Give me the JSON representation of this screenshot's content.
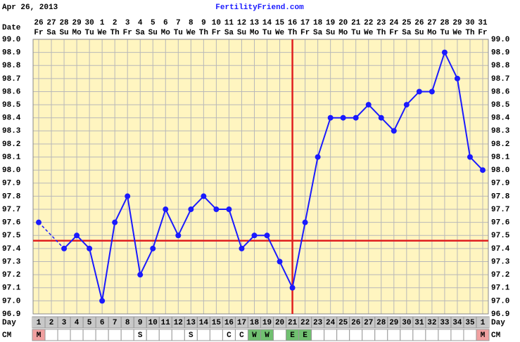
{
  "chart_data": {
    "type": "line",
    "date": "Apr 26, 2013",
    "title": "FertilityFriend.com",
    "date_label": "Date",
    "day_label": "Day",
    "cm_label": "CM",
    "categories": [
      "26",
      "27",
      "28",
      "29",
      "30",
      "1",
      "2",
      "3",
      "4",
      "5",
      "6",
      "7",
      "8",
      "9",
      "10",
      "11",
      "12",
      "13",
      "14",
      "15",
      "16",
      "17",
      "18",
      "19",
      "20",
      "21",
      "22",
      "23",
      "24",
      "25",
      "26",
      "27",
      "28",
      "29",
      "30",
      "31"
    ],
    "weekdays": [
      "Fr",
      "Sa",
      "Su",
      "Mo",
      "Tu",
      "We",
      "Th",
      "Fr",
      "Sa",
      "Su",
      "Mo",
      "Tu",
      "We",
      "Th",
      "Fr",
      "Sa",
      "Su",
      "Mo",
      "Tu",
      "We",
      "Th",
      "Fr",
      "Sa",
      "Su",
      "Mo",
      "Tu",
      "We",
      "Th",
      "Fr",
      "Sa",
      "Su",
      "Mo",
      "Tu",
      "We",
      "Th",
      "Fr"
    ],
    "cycle_days": [
      1,
      2,
      3,
      4,
      5,
      6,
      7,
      8,
      9,
      10,
      11,
      12,
      13,
      14,
      15,
      16,
      17,
      18,
      19,
      20,
      21,
      22,
      23,
      24,
      25,
      26,
      27,
      28,
      29,
      30,
      31,
      32,
      33,
      34,
      35,
      1
    ],
    "cm": [
      "M",
      null,
      null,
      null,
      null,
      null,
      null,
      null,
      "S",
      null,
      null,
      null,
      "S",
      null,
      null,
      "C",
      "C",
      "W",
      "W",
      null,
      "E",
      "E",
      null,
      null,
      null,
      null,
      null,
      null,
      null,
      null,
      null,
      null,
      null,
      null,
      null,
      "M"
    ],
    "cm_colors": [
      "#f0a0a0",
      null,
      null,
      null,
      null,
      null,
      null,
      null,
      null,
      null,
      null,
      null,
      null,
      null,
      null,
      null,
      null,
      "#70c070",
      "#70c070",
      null,
      "#70c070",
      "#70c070",
      null,
      null,
      null,
      null,
      null,
      null,
      null,
      null,
      null,
      null,
      null,
      null,
      null,
      "#f0a0a0"
    ],
    "values": [
      97.6,
      null,
      97.4,
      97.5,
      97.4,
      97.0,
      97.6,
      97.8,
      97.2,
      97.4,
      97.7,
      97.5,
      97.7,
      97.8,
      97.7,
      97.7,
      97.4,
      97.5,
      97.5,
      97.3,
      97.1,
      97.6,
      98.1,
      98.4,
      98.4,
      98.4,
      98.5,
      98.4,
      98.3,
      98.5,
      98.6,
      98.6,
      98.9,
      98.7,
      98.1,
      98.0
    ],
    "color": "#1a1aff",
    "coverline": 97.46,
    "ovulation_day": 21,
    "reference_color": "#e02020",
    "ylim": [
      96.9,
      99.0
    ],
    "yticks": [
      {
        "value": 96.9,
        "label": "96.9"
      },
      {
        "value": 97.0,
        "label": "97.0"
      },
      {
        "value": 97.1,
        "label": "97.1"
      },
      {
        "value": 97.2,
        "label": "97.2"
      },
      {
        "value": 97.3,
        "label": "97.3"
      },
      {
        "value": 97.4,
        "label": "97.4"
      },
      {
        "value": 97.5,
        "label": "97.5"
      },
      {
        "value": 97.6,
        "label": "97.6"
      },
      {
        "value": 97.7,
        "label": "97.7"
      },
      {
        "value": 97.8,
        "label": "97.8"
      },
      {
        "value": 97.9,
        "label": "97.9"
      },
      {
        "value": 98.0,
        "label": "98.0"
      },
      {
        "value": 98.1,
        "label": "98.1"
      },
      {
        "value": 98.2,
        "label": "98.2"
      },
      {
        "value": 98.3,
        "label": "98.3"
      },
      {
        "value": 98.4,
        "label": "98.4"
      },
      {
        "value": 98.5,
        "label": "98.5"
      },
      {
        "value": 98.6,
        "label": "98.6"
      },
      {
        "value": 98.7,
        "label": "98.7"
      },
      {
        "value": 98.8,
        "label": "98.8"
      },
      {
        "value": 98.9,
        "label": "98.9"
      },
      {
        "value": 99.0,
        "label": "99.0"
      }
    ],
    "grid": true
  }
}
